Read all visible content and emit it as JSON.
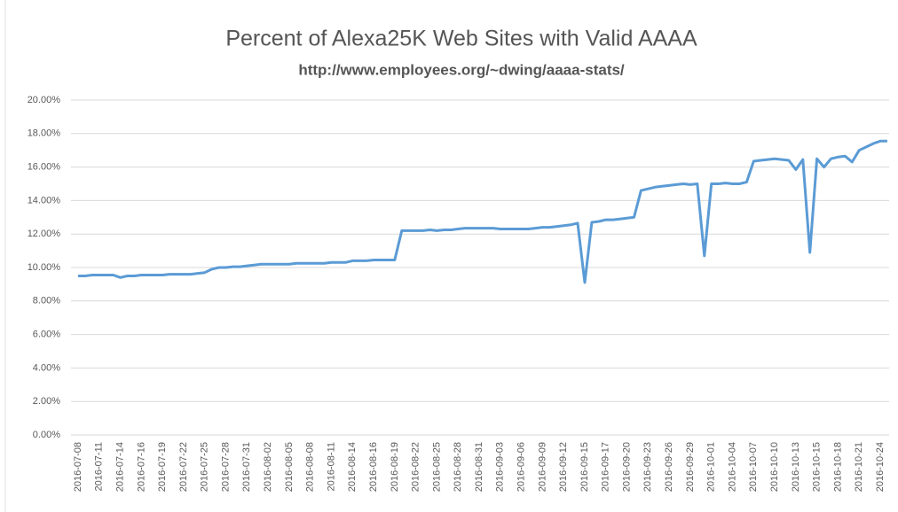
{
  "chart_data": {
    "type": "line",
    "title": "Percent of Alexa25K Web Sites with Valid AAAA",
    "subtitle": "http://www.employees.org/~dwing/aaaa-stats/",
    "categories": [
      "2016-07-08",
      null,
      null,
      "2016-07-11",
      null,
      null,
      "2016-07-14",
      null,
      null,
      "2016-07-16",
      null,
      null,
      "2016-07-19",
      null,
      null,
      "2016-07-22",
      null,
      null,
      "2016-07-25",
      null,
      null,
      "2016-07-28",
      null,
      null,
      "2016-07-31",
      null,
      null,
      "2016-08-02",
      null,
      null,
      "2016-08-05",
      null,
      null,
      "2016-08-08",
      null,
      null,
      "2016-08-11",
      null,
      null,
      "2016-08-14",
      null,
      null,
      "2016-08-16",
      null,
      null,
      "2016-08-19",
      null,
      null,
      "2016-08-22",
      null,
      null,
      "2016-08-25",
      null,
      null,
      "2016-08-28",
      null,
      null,
      "2016-08-31",
      null,
      null,
      "2016-09-03",
      null,
      null,
      "2016-09-06",
      null,
      null,
      "2016-09-09",
      null,
      null,
      "2016-09-12",
      null,
      null,
      "2016-09-15",
      null,
      null,
      "2016-09-17",
      null,
      null,
      "2016-09-20",
      null,
      null,
      "2016-09-23",
      null,
      null,
      "2016-09-26",
      null,
      null,
      "2016-09-29",
      null,
      null,
      "2016-10-01",
      null,
      null,
      "2016-10-04",
      null,
      null,
      "2016-10-07",
      null,
      null,
      "2016-10-10",
      null,
      null,
      "2016-10-13",
      null,
      null,
      "2016-10-15",
      null,
      null,
      "2016-10-18",
      null,
      null,
      "2016-10-21",
      null,
      null,
      "2016-10-24",
      null
    ],
    "series": [
      {
        "name": "Valid AAAA",
        "color": "#5b9bd5",
        "values": [
          9.5,
          9.5,
          9.55,
          9.55,
          9.55,
          9.55,
          9.4,
          9.5,
          9.5,
          9.55,
          9.55,
          9.55,
          9.55,
          9.6,
          9.6,
          9.6,
          9.6,
          9.65,
          9.7,
          9.9,
          10.0,
          10.0,
          10.05,
          10.05,
          10.1,
          10.15,
          10.2,
          10.2,
          10.2,
          10.2,
          10.2,
          10.25,
          10.25,
          10.25,
          10.25,
          10.25,
          10.3,
          10.3,
          10.3,
          10.4,
          10.4,
          10.4,
          10.45,
          10.45,
          10.45,
          10.45,
          12.2,
          12.2,
          12.2,
          12.2,
          12.25,
          12.2,
          12.25,
          12.25,
          12.3,
          12.35,
          12.35,
          12.35,
          12.35,
          12.35,
          12.3,
          12.3,
          12.3,
          12.3,
          12.3,
          12.35,
          12.4,
          12.4,
          12.45,
          12.5,
          12.55,
          12.65,
          9.1,
          12.7,
          12.75,
          12.85,
          12.85,
          12.9,
          12.95,
          13.0,
          14.6,
          14.7,
          14.8,
          14.85,
          14.9,
          14.95,
          15.0,
          14.95,
          15.0,
          10.7,
          15.0,
          15.0,
          15.05,
          15.0,
          15.0,
          15.1,
          16.35,
          16.4,
          16.45,
          16.5,
          16.45,
          16.4,
          15.85,
          16.45,
          10.9,
          16.5,
          16.0,
          16.5,
          16.6,
          16.65,
          16.3,
          17.0,
          17.2,
          17.4,
          17.55,
          17.55
        ]
      }
    ],
    "ylim": [
      0,
      20
    ],
    "yticks": [
      {
        "value": 0,
        "label": "0.00%"
      },
      {
        "value": 2,
        "label": "2.00%"
      },
      {
        "value": 4,
        "label": "4.00%"
      },
      {
        "value": 6,
        "label": "6.00%"
      },
      {
        "value": 8,
        "label": "8.00%"
      },
      {
        "value": 10,
        "label": "10.00%"
      },
      {
        "value": 12,
        "label": "12.00%"
      },
      {
        "value": 14,
        "label": "14.00%"
      },
      {
        "value": 16,
        "label": "16.00%"
      },
      {
        "value": 18,
        "label": "18.00%"
      },
      {
        "value": 20,
        "label": "20.00%"
      }
    ],
    "grid": true
  }
}
